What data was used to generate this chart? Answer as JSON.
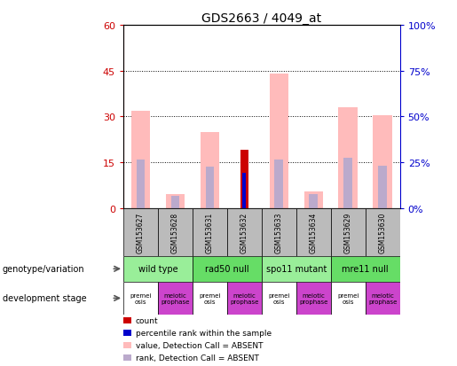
{
  "title": "GDS2663 / 4049_at",
  "samples": [
    "GSM153627",
    "GSM153628",
    "GSM153631",
    "GSM153632",
    "GSM153633",
    "GSM153634",
    "GSM153629",
    "GSM153630"
  ],
  "value_absent": [
    32.0,
    4.5,
    25.0,
    0,
    44.0,
    5.5,
    33.0,
    30.5
  ],
  "rank_absent": [
    16.0,
    4.0,
    13.5,
    0,
    16.0,
    4.5,
    16.5,
    14.0
  ],
  "count": [
    0,
    0,
    0,
    19.0,
    0,
    0,
    0,
    0
  ],
  "percentile": [
    0,
    0,
    0,
    11.5,
    0,
    0,
    0,
    0
  ],
  "ylim_left": [
    0,
    60
  ],
  "ylim_right": [
    0,
    100
  ],
  "yticks_left": [
    0,
    15,
    30,
    45,
    60
  ],
  "yticks_right": [
    0,
    25,
    50,
    75,
    100
  ],
  "ytick_labels_left": [
    "0",
    "15",
    "30",
    "45",
    "60"
  ],
  "ytick_labels_right": [
    "0%",
    "25%",
    "50%",
    "75%",
    "100%"
  ],
  "genotype_groups": [
    {
      "label": "wild type",
      "span": [
        0,
        2
      ],
      "color": "#99ee99"
    },
    {
      "label": "rad50 null",
      "span": [
        2,
        4
      ],
      "color": "#66dd66"
    },
    {
      "label": "spo11 mutant",
      "span": [
        4,
        6
      ],
      "color": "#99ee99"
    },
    {
      "label": "mre11 null",
      "span": [
        6,
        8
      ],
      "color": "#66dd66"
    }
  ],
  "stage_colors": [
    "#ffffff",
    "#cc44cc",
    "#ffffff",
    "#cc44cc",
    "#ffffff",
    "#cc44cc",
    "#ffffff",
    "#cc44cc"
  ],
  "stage_labels": [
    "premei\nosis",
    "meiotic\nprophase",
    "premei\nosis",
    "meiotic\nprophase",
    "premei\nosis",
    "meiotic\nprophase",
    "premei\nosis",
    "meiotic\nprophase"
  ],
  "color_value_absent": "#ffbbbb",
  "color_rank_absent": "#bbaacc",
  "color_count": "#cc0000",
  "color_percentile": "#0000cc",
  "sample_bg_color": "#bbbbbb",
  "left_axis_color": "#cc0000",
  "right_axis_color": "#0000cc",
  "legend_items": [
    {
      "color": "#cc0000",
      "label": "count"
    },
    {
      "color": "#0000cc",
      "label": "percentile rank within the sample"
    },
    {
      "color": "#ffbbbb",
      "label": "value, Detection Call = ABSENT"
    },
    {
      "color": "#bbaacc",
      "label": "rank, Detection Call = ABSENT"
    }
  ]
}
